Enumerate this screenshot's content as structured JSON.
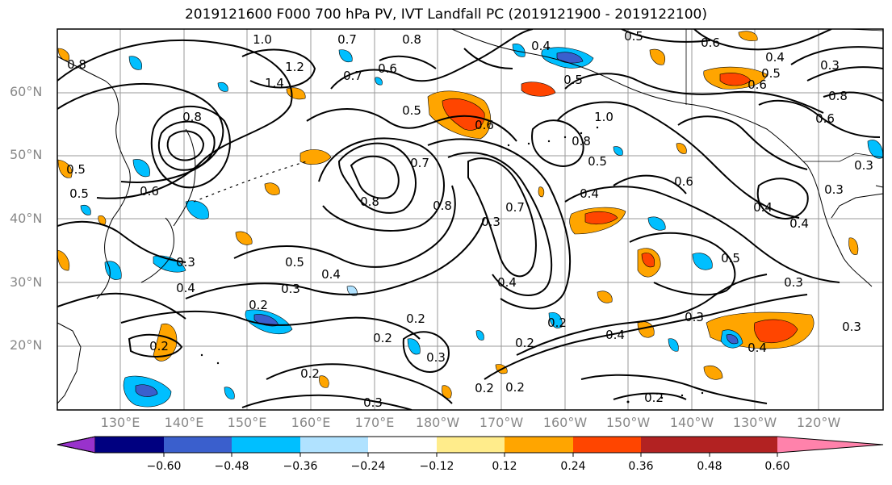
{
  "title": "2019121600 F000 700 hPa PV, IVT Landfall PC (2019121900 - 2019122100)",
  "lat_labels": [
    "60°N",
    "50°N",
    "40°N",
    "30°N",
    "20°N"
  ],
  "lon_labels": [
    "130°E",
    "140°E",
    "150°E",
    "160°E",
    "170°E",
    "180°W",
    "170°W",
    "160°W",
    "150°W",
    "140°W",
    "130°W",
    "120°W"
  ],
  "colorbar": {
    "colors": [
      "#9932cc",
      "#000080",
      "#3a5fcd",
      "#00bfff",
      "#b0e2ff",
      "#ffffff",
      "#ffec8b",
      "#ffa500",
      "#ff4500",
      "#b22222",
      "#ff82ab"
    ],
    "ticks": [
      "−0.60",
      "−0.48",
      "−0.36",
      "−0.24",
      "−0.12",
      "0.12",
      "0.24",
      "0.36",
      "0.48",
      "0.60"
    ]
  },
  "contour_labels": [
    "1.0",
    "0.7",
    "0.8",
    "1.4",
    "1.2",
    "0.7",
    "0.6",
    "0.4",
    "0.5",
    "0.5",
    "0.6",
    "0.4",
    "0.5",
    "0.6",
    "0.8",
    "0.6",
    "0.5",
    "0.6",
    "0.8",
    "1.0",
    "0.8",
    "0.5",
    "0.4",
    "0.7",
    "0.8",
    "0.8",
    "0.6",
    "0.3",
    "0.7",
    "0.4",
    "0.6",
    "0.3",
    "0.4",
    "0.5",
    "0.4",
    "0.3",
    "0.5",
    "0.3",
    "0.3",
    "0.4",
    "0.3",
    "0.2",
    "0.4",
    "0.2",
    "0.2",
    "0.2",
    "0.3",
    "0.2",
    "0.3",
    "0.2",
    "0.4",
    "0.2",
    "0.2",
    "0.2",
    "0.4",
    "0.3",
    "0.2",
    "0.3",
    "0.5",
    "0.8",
    "0.5",
    "0.3"
  ]
}
